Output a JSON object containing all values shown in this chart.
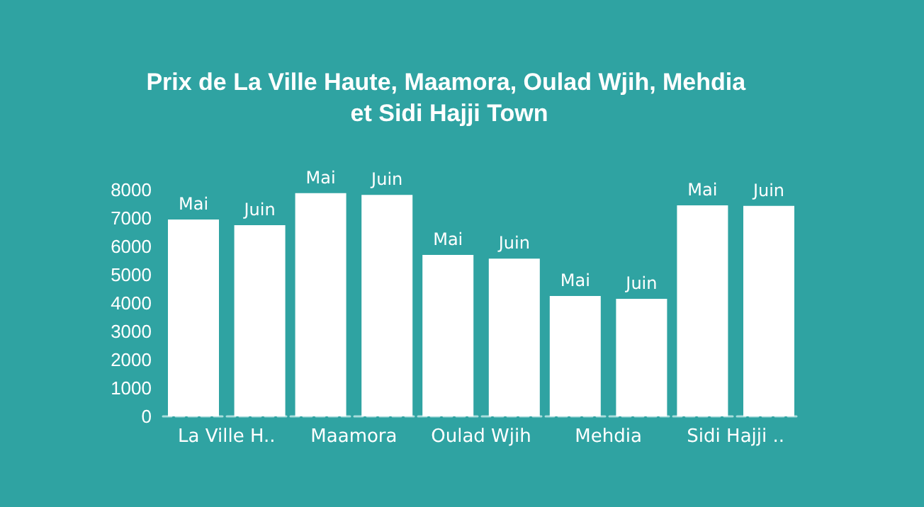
{
  "chart_data": {
    "type": "bar",
    "title": "Prix de La Ville Haute, Maamora, Oulad Wjih, Mehdia et Sidi Hajji Town",
    "categories": [
      "La Ville H..",
      "Maamora",
      "Oulad Wjih",
      "Mehdia",
      "Sidi Hajji .."
    ],
    "series": [
      {
        "name": "Mai",
        "color": "#ffffff",
        "values": [
          6950,
          7880,
          5700,
          4250,
          7450
        ]
      },
      {
        "name": "Juin",
        "color": "#ffffff",
        "values": [
          6750,
          7820,
          5570,
          4150,
          7430
        ]
      }
    ],
    "ylim": [
      0,
      8000
    ],
    "yticks": [
      0,
      1000,
      2000,
      3000,
      4000,
      5000,
      6000,
      7000,
      8000
    ],
    "grid": false,
    "legend": false
  }
}
